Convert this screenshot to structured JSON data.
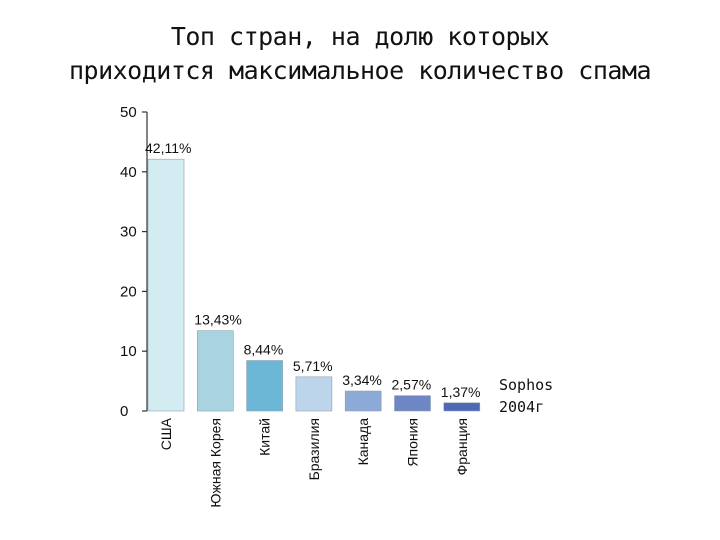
{
  "chart_data": {
    "type": "bar",
    "title": [
      "Топ стран, на долю которых",
      "приходится максимальное количество спама"
    ],
    "categories": [
      "США",
      "Южная Корея",
      "Китай",
      "Бразилия",
      "Канада",
      "Япония",
      "Франция"
    ],
    "values": [
      42.11,
      13.43,
      8.44,
      5.71,
      3.34,
      2.57,
      1.37
    ],
    "data_labels": [
      "42,11%",
      "13,43%",
      "8,44%",
      "5,71%",
      "3,34%",
      "2,57%",
      "1,37%"
    ],
    "colors": [
      "#d2ecf1",
      "#a9d3e0",
      "#6db7d6",
      "#bdd5ea",
      "#8da9d6",
      "#6e86c3",
      "#4f68b3"
    ],
    "yticks": [
      0,
      10,
      20,
      30,
      40,
      50
    ],
    "ylim": [
      0,
      50
    ],
    "xlabel": "",
    "ylabel": "",
    "grid": false,
    "annotation": [
      "Sophos",
      "2004г"
    ]
  }
}
